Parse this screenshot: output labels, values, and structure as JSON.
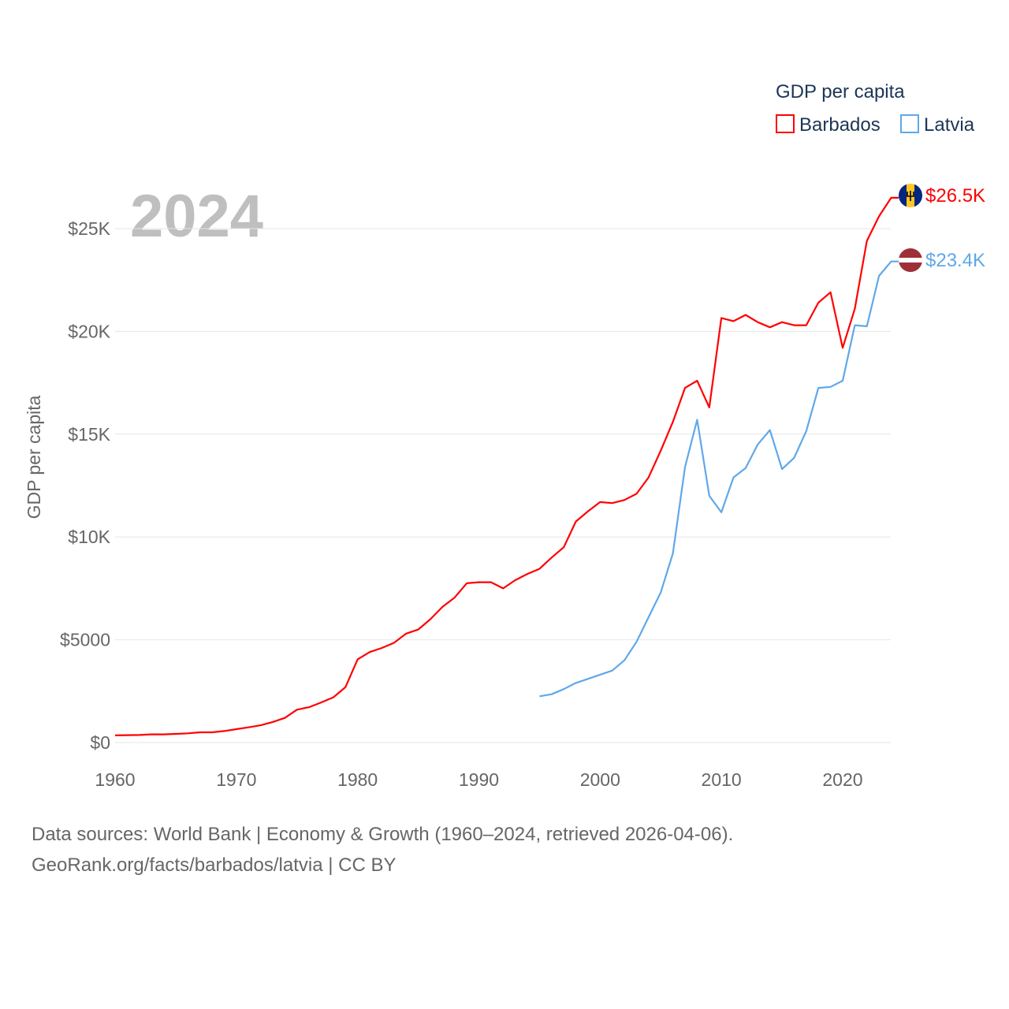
{
  "chart_data": {
    "type": "line",
    "title": "GDP per capita",
    "current_year_label": "2024",
    "ylabel": "GDP per capita",
    "xlabel": "",
    "xlim": [
      1960,
      2024
    ],
    "ylim": [
      0,
      27000
    ],
    "x_ticks": [
      1960,
      1970,
      1980,
      1990,
      2000,
      2010,
      2020
    ],
    "x_tick_labels": [
      "1960",
      "1970",
      "1980",
      "1990",
      "2000",
      "2010",
      "2020"
    ],
    "y_ticks": [
      0,
      5000,
      10000,
      15000,
      20000,
      25000
    ],
    "y_tick_labels": [
      "$0",
      "$5000",
      "$10K",
      "$15K",
      "$20K",
      "$25K"
    ],
    "grid": true,
    "legend": {
      "title": "GDP per capita",
      "placement": "top-right"
    },
    "series": [
      {
        "name": "Barbados",
        "color": "#ff0000",
        "end_label": "$26.5K",
        "flag": "barbados-flag",
        "x_start": 1960,
        "values": [
          350,
          360,
          370,
          400,
          400,
          420,
          450,
          500,
          500,
          560,
          650,
          740,
          840,
          1000,
          1200,
          1600,
          1720,
          1950,
          2200,
          2700,
          4050,
          4400,
          4600,
          4850,
          5300,
          5500,
          6000,
          6600,
          7050,
          7750,
          7800,
          7800,
          7500,
          7900,
          8200,
          8450,
          9000,
          9500,
          10750,
          11250,
          11700,
          11650,
          11800,
          12100,
          12900,
          14200,
          15600,
          17250,
          17600,
          16300,
          20650,
          20500,
          20800,
          20450,
          20200,
          20450,
          20300,
          20300,
          21400,
          21900,
          19200,
          21100,
          24400,
          25600,
          26500
        ]
      },
      {
        "name": "Latvia",
        "color": "#5fa8ea",
        "end_label": "$23.4K",
        "flag": "latvia-flag",
        "x_start": 1995,
        "values": [
          2250,
          2350,
          2600,
          2900,
          3100,
          3300,
          3500,
          4000,
          4900,
          6100,
          7300,
          9200,
          13400,
          15700,
          12000,
          11200,
          12900,
          13350,
          14500,
          15200,
          13300,
          13850,
          15150,
          17250,
          17300,
          17600,
          20300,
          20250,
          22700,
          23400
        ]
      }
    ]
  },
  "footer": {
    "line1": "Data sources: World Bank | Economy & Growth (1960–2024, retrieved 2026-04-06).",
    "line2": "GeoRank.org/facts/barbados/latvia | CC BY"
  }
}
